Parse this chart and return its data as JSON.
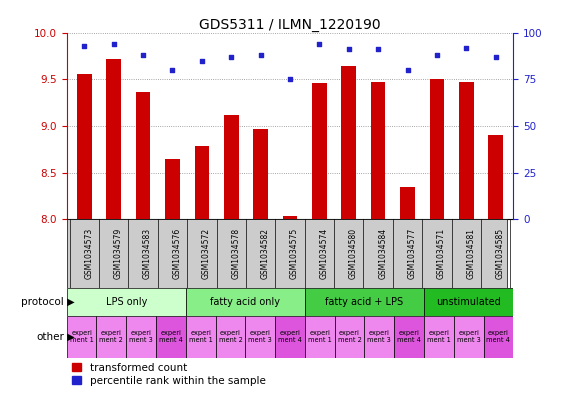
{
  "title": "GDS5311 / ILMN_1220190",
  "samples": [
    "GSM1034573",
    "GSM1034579",
    "GSM1034583",
    "GSM1034576",
    "GSM1034572",
    "GSM1034578",
    "GSM1034582",
    "GSM1034575",
    "GSM1034574",
    "GSM1034580",
    "GSM1034584",
    "GSM1034577",
    "GSM1034571",
    "GSM1034581",
    "GSM1034585"
  ],
  "transformed_count": [
    9.56,
    9.72,
    9.36,
    8.65,
    8.78,
    9.12,
    8.97,
    8.04,
    9.46,
    9.64,
    9.47,
    8.35,
    9.5,
    9.47,
    8.9
  ],
  "percentile_rank": [
    93,
    94,
    88,
    80,
    85,
    87,
    88,
    75,
    94,
    91,
    91,
    80,
    88,
    92,
    87
  ],
  "ylim_left": [
    8.0,
    10.0
  ],
  "ylim_right": [
    0,
    100
  ],
  "yticks_left": [
    8.0,
    8.5,
    9.0,
    9.5,
    10.0
  ],
  "yticks_right": [
    0,
    25,
    50,
    75,
    100
  ],
  "bar_color": "#cc0000",
  "dot_color": "#2222cc",
  "protocol_groups": [
    {
      "label": "LPS only",
      "start": 0,
      "end": 4,
      "color": "#ccffcc"
    },
    {
      "label": "fatty acid only",
      "start": 4,
      "end": 8,
      "color": "#88ee88"
    },
    {
      "label": "fatty acid + LPS",
      "start": 8,
      "end": 12,
      "color": "#44cc44"
    },
    {
      "label": "unstimulated",
      "start": 12,
      "end": 15,
      "color": "#22bb22"
    }
  ],
  "other_cells": [
    {
      "label": "experi\nment 1",
      "color": "#ee88ee"
    },
    {
      "label": "experi\nment 2",
      "color": "#ee88ee"
    },
    {
      "label": "experi\nment 3",
      "color": "#ee88ee"
    },
    {
      "label": "experi\nment 4",
      "color": "#dd55dd"
    },
    {
      "label": "experi\nment 1",
      "color": "#ee88ee"
    },
    {
      "label": "experi\nment 2",
      "color": "#ee88ee"
    },
    {
      "label": "experi\nment 3",
      "color": "#ee88ee"
    },
    {
      "label": "experi\nment 4",
      "color": "#dd55dd"
    },
    {
      "label": "experi\nment 1",
      "color": "#ee88ee"
    },
    {
      "label": "experi\nment 2",
      "color": "#ee88ee"
    },
    {
      "label": "experi\nment 3",
      "color": "#ee88ee"
    },
    {
      "label": "experi\nment 4",
      "color": "#dd55dd"
    },
    {
      "label": "experi\nment 1",
      "color": "#ee88ee"
    },
    {
      "label": "experi\nment 3",
      "color": "#ee88ee"
    },
    {
      "label": "experi\nment 4",
      "color": "#dd55dd"
    }
  ],
  "protocol_label": "protocol",
  "other_label": "other",
  "legend_red": "transformed count",
  "legend_blue": "percentile rank within the sample",
  "bg_color": "#ffffff",
  "xtick_bg": "#cccccc",
  "tick_label_color_left": "#cc0000",
  "tick_label_color_right": "#2222cc",
  "title_fontsize": 10,
  "axis_fontsize": 7.5,
  "legend_fontsize": 7.5
}
